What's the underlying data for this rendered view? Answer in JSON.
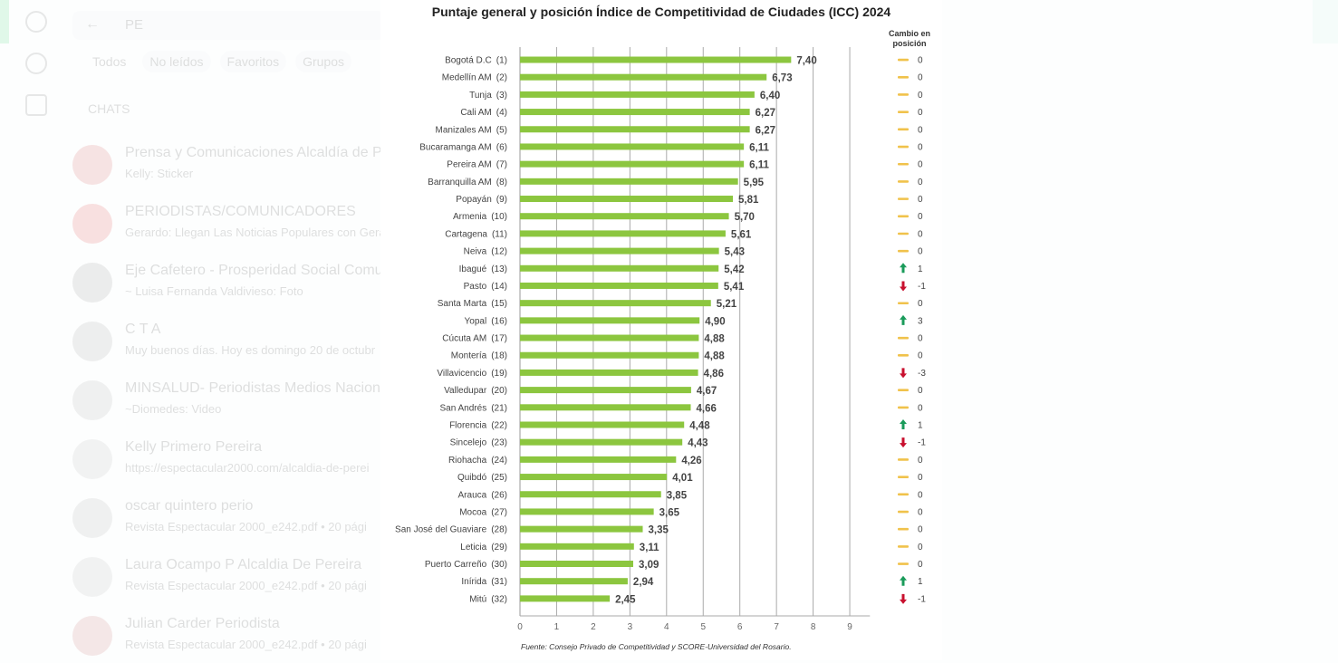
{
  "background_app": {
    "search_query": "PE",
    "filters": [
      "Todos",
      "No leídos",
      "Favoritos",
      "Grupos"
    ],
    "section_header": "CHATS",
    "chats": [
      {
        "name": "Prensa y Comunicaciones Alcaldía de Per...",
        "message": "Kelly: Sticker"
      },
      {
        "name": "PERIODISTAS/COMUNICADORES",
        "message": "Gerardo: Llegan Las Noticias Populares con Gerar..."
      },
      {
        "name": "Eje Cafetero - Prosperidad Social Comuni",
        "message": "~ Luisa Fernanda Valdivieso: Foto"
      },
      {
        "name": "C T A",
        "message": "Muy buenos días. Hoy es domingo 20 de octubr"
      },
      {
        "name": "MINSALUD- Periodistas Medios Nacional",
        "message": "~Diomedes: Video"
      },
      {
        "name": "Kelly Primero Pereira",
        "message": "https://espectacular2000.com/alcaldia-de-perei"
      },
      {
        "name": "oscar quintero perio",
        "message": "Revista Espectacular 2000_e242.pdf • 20 pági"
      },
      {
        "name": "Laura Ocampo P Alcaldia De Pereira",
        "message": "Revista Espectacular 2000_e242.pdf • 20 pági"
      },
      {
        "name": "Julian Carder Periodista",
        "message": "Revista Espectacular 2000_e242.pdf • 20 pági"
      }
    ]
  },
  "chart_data": {
    "type": "bar",
    "orientation": "horizontal",
    "title": "Puntaje general y posición Índice de Competitividad de Ciudades (ICC) 2024",
    "change_header": [
      "Cambio en",
      "posición"
    ],
    "source": "Fuente: Consejo Privado de Competitividad y SCORE-Universidad del Rosario.",
    "xlim": [
      0,
      9
    ],
    "xticks": [
      "0",
      "1",
      "2",
      "3",
      "4",
      "5",
      "6",
      "7",
      "8",
      "9"
    ],
    "grid": true,
    "bar_color": "#8cc63f",
    "up_color": "#1a9b5a",
    "down_color": "#c8102e",
    "same_color": "#f0c24b",
    "categories": [
      "Bogotá D.C",
      "Medellín AM",
      "Tunja",
      "Cali AM",
      "Manizales AM",
      "Bucaramanga AM",
      "Pereira AM",
      "Barranquilla AM",
      "Popayán",
      "Armenia",
      "Cartagena",
      "Neiva",
      "Ibagué",
      "Pasto",
      "Santa Marta",
      "Yopal",
      "Cúcuta AM",
      "Montería",
      "Villavicencio",
      "Valledupar",
      "San Andrés",
      "Florencia",
      "Sincelejo",
      "Riohacha",
      "Quibdó",
      "Arauca",
      "Mocoa",
      "San José del Guaviare",
      "Leticia",
      "Puerto Carreño",
      "Inírida",
      "Mitú"
    ],
    "ranks": [
      "(1)",
      "(2)",
      "(3)",
      "(4)",
      "(5)",
      "(6)",
      "(7)",
      "(8)",
      "(9)",
      "(10)",
      "(11)",
      "(12)",
      "(13)",
      "(14)",
      "(15)",
      "(16)",
      "(17)",
      "(18)",
      "(19)",
      "(20)",
      "(21)",
      "(22)",
      "(23)",
      "(24)",
      "(25)",
      "(26)",
      "(27)",
      "(28)",
      "(29)",
      "(30)",
      "(31)",
      "(32)"
    ],
    "values": [
      7.4,
      6.73,
      6.4,
      6.27,
      6.27,
      6.11,
      6.11,
      5.95,
      5.81,
      5.7,
      5.61,
      5.43,
      5.42,
      5.41,
      5.21,
      4.9,
      4.88,
      4.88,
      4.86,
      4.67,
      4.66,
      4.48,
      4.43,
      4.26,
      4.01,
      3.85,
      3.65,
      3.35,
      3.11,
      3.09,
      2.94,
      2.45
    ],
    "value_labels": [
      "7,40",
      "6,73",
      "6,40",
      "6,27",
      "6,27",
      "6,11",
      "6,11",
      "5,95",
      "5,81",
      "5,70",
      "5,61",
      "5,43",
      "5,42",
      "5,41",
      "5,21",
      "4,90",
      "4,88",
      "4,88",
      "4,86",
      "4,67",
      "4,66",
      "4,48",
      "4,43",
      "4,26",
      "4,01",
      "3,85",
      "3,65",
      "3,35",
      "3,11",
      "3,09",
      "2,94",
      "2,45"
    ],
    "position_change": [
      "0",
      "0",
      "0",
      "0",
      "0",
      "0",
      "0",
      "0",
      "0",
      "0",
      "0",
      "0",
      "1",
      "-1",
      "0",
      "3",
      "0",
      "0",
      "-3",
      "0",
      "0",
      "1",
      "-1",
      "0",
      "0",
      "0",
      "0",
      "0",
      "0",
      "0",
      "1",
      "-1"
    ]
  }
}
